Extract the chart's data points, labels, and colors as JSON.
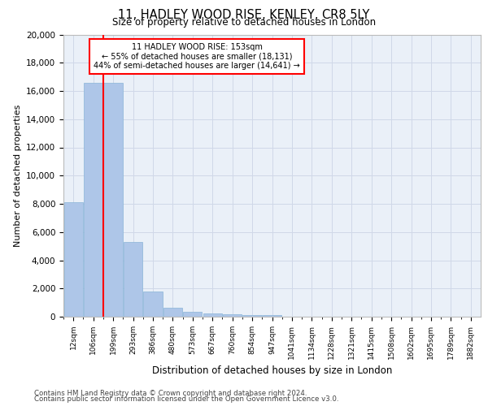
{
  "title_line1": "11, HADLEY WOOD RISE, KENLEY, CR8 5LY",
  "title_line2": "Size of property relative to detached houses in London",
  "xlabel": "Distribution of detached houses by size in London",
  "ylabel": "Number of detached properties",
  "categories": [
    "12sqm",
    "106sqm",
    "199sqm",
    "293sqm",
    "386sqm",
    "480sqm",
    "573sqm",
    "667sqm",
    "760sqm",
    "854sqm",
    "947sqm",
    "1041sqm",
    "1134sqm",
    "1228sqm",
    "1321sqm",
    "1415sqm",
    "1508sqm",
    "1602sqm",
    "1695sqm",
    "1789sqm",
    "1882sqm"
  ],
  "values": [
    8100,
    16600,
    16600,
    5300,
    1800,
    650,
    340,
    210,
    170,
    130,
    100,
    0,
    0,
    0,
    0,
    0,
    0,
    0,
    0,
    0,
    0
  ],
  "bar_color": "#aec6e8",
  "bar_edge_color": "#8ab4d8",
  "vline_color": "red",
  "vline_x": 1.5,
  "annotation_text": "11 HADLEY WOOD RISE: 153sqm\n← 55% of detached houses are smaller (18,131)\n44% of semi-detached houses are larger (14,641) →",
  "annotation_box_color": "white",
  "annotation_box_edge_color": "red",
  "ylim": [
    0,
    20000
  ],
  "yticks": [
    0,
    2000,
    4000,
    6000,
    8000,
    10000,
    12000,
    14000,
    16000,
    18000,
    20000
  ],
  "grid_color": "#d0d8e8",
  "bg_color": "#eaf0f8",
  "footer_line1": "Contains HM Land Registry data © Crown copyright and database right 2024.",
  "footer_line2": "Contains public sector information licensed under the Open Government Licence v3.0."
}
